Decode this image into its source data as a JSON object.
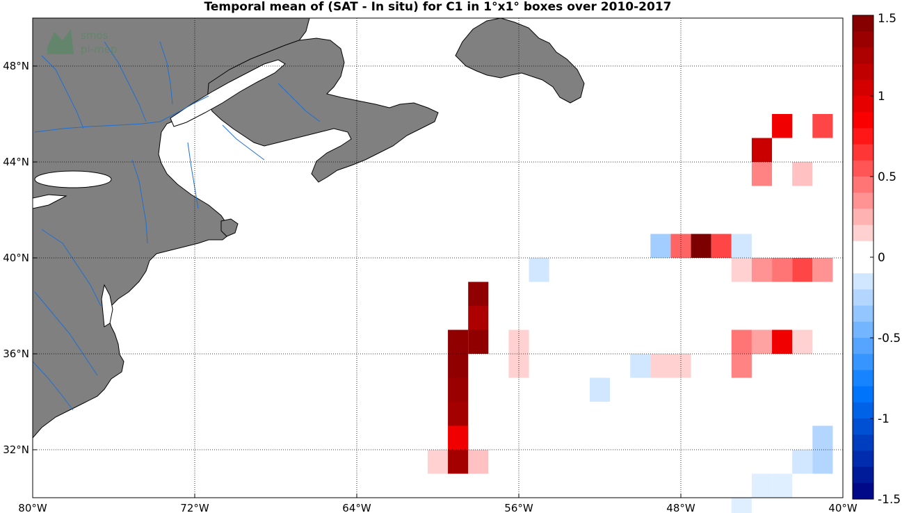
{
  "title": "Temporal mean of (SAT - In situ) for C1 in 1°x1° boxes over 2010-2017",
  "watermark": {
    "line1": "smos",
    "line2": "pi-mep"
  },
  "map": {
    "lon_range": [
      -80,
      -40
    ],
    "lat_range": [
      30,
      50
    ],
    "lon_ticks": [
      -80,
      -72,
      -64,
      -56,
      -48,
      -40
    ],
    "lat_ticks": [
      32,
      36,
      40,
      44,
      48
    ],
    "lon_tick_labels": [
      "80°W",
      "72°W",
      "64°W",
      "56°W",
      "48°W",
      "40°W"
    ],
    "lat_tick_labels": [
      "32°N",
      "36°N",
      "40°N",
      "44°N",
      "48°N"
    ],
    "land_color": "#808080",
    "river_color": "#1f6fd0",
    "grid": true
  },
  "colorbar": {
    "range": [
      -1.5,
      1.5
    ],
    "ticks": [
      1.5,
      1,
      0.5,
      0,
      -0.5,
      -1,
      -1.5
    ],
    "tick_labels": [
      "1.5",
      "1",
      "0.5",
      "0",
      "-0.5",
      "-1",
      "-1.5"
    ]
  },
  "chart_data": {
    "type": "heatmap",
    "title": "Temporal mean of (SAT - In situ) for C1 in 1°x1° boxes over 2010-2017",
    "cell_size_deg": 1,
    "cells": [
      {
        "lon": -43.0,
        "lat": 45.5,
        "value": 0.9
      },
      {
        "lon": -41.0,
        "lat": 45.5,
        "value": 0.6
      },
      {
        "lon": -44.0,
        "lat": 44.5,
        "value": 1.1
      },
      {
        "lon": -44.0,
        "lat": 43.5,
        "value": 0.4
      },
      {
        "lon": -42.0,
        "lat": 43.5,
        "value": 0.2
      },
      {
        "lon": -49.0,
        "lat": 40.5,
        "value": -0.3
      },
      {
        "lon": -48.0,
        "lat": 40.5,
        "value": 0.5
      },
      {
        "lon": -47.0,
        "lat": 40.5,
        "value": 1.5
      },
      {
        "lon": -46.0,
        "lat": 40.5,
        "value": 0.6
      },
      {
        "lon": -45.0,
        "lat": 40.5,
        "value": -0.15
      },
      {
        "lon": -55.0,
        "lat": 39.5,
        "value": -0.15
      },
      {
        "lon": -45.0,
        "lat": 39.5,
        "value": 0.15
      },
      {
        "lon": -44.0,
        "lat": 39.5,
        "value": 0.35
      },
      {
        "lon": -43.0,
        "lat": 39.5,
        "value": 0.45
      },
      {
        "lon": -42.0,
        "lat": 39.5,
        "value": 0.6
      },
      {
        "lon": -41.0,
        "lat": 39.5,
        "value": 0.35
      },
      {
        "lon": -58.0,
        "lat": 38.5,
        "value": 1.4
      },
      {
        "lon": -58.0,
        "lat": 37.5,
        "value": 1.25
      },
      {
        "lon": -59.0,
        "lat": 36.5,
        "value": 1.4
      },
      {
        "lon": -58.0,
        "lat": 36.5,
        "value": 1.4
      },
      {
        "lon": -56.0,
        "lat": 36.5,
        "value": 0.15
      },
      {
        "lon": -45.0,
        "lat": 36.5,
        "value": 0.45
      },
      {
        "lon": -44.0,
        "lat": 36.5,
        "value": 0.3
      },
      {
        "lon": -43.0,
        "lat": 36.5,
        "value": 0.9
      },
      {
        "lon": -42.0,
        "lat": 36.5,
        "value": 0.15
      },
      {
        "lon": -59.0,
        "lat": 35.5,
        "value": 1.4
      },
      {
        "lon": -56.0,
        "lat": 35.5,
        "value": 0.15
      },
      {
        "lon": -50.0,
        "lat": 35.5,
        "value": -0.15
      },
      {
        "lon": -49.0,
        "lat": 35.5,
        "value": 0.15
      },
      {
        "lon": -48.0,
        "lat": 35.5,
        "value": 0.15
      },
      {
        "lon": -45.0,
        "lat": 35.5,
        "value": 0.4
      },
      {
        "lon": -59.0,
        "lat": 34.5,
        "value": 1.35
      },
      {
        "lon": -52.0,
        "lat": 34.5,
        "value": -0.15
      },
      {
        "lon": -59.0,
        "lat": 33.5,
        "value": 1.3
      },
      {
        "lon": -59.0,
        "lat": 32.5,
        "value": 0.9
      },
      {
        "lon": -41.0,
        "lat": 32.5,
        "value": -0.25
      },
      {
        "lon": -60.0,
        "lat": 31.5,
        "value": 0.15
      },
      {
        "lon": -59.0,
        "lat": 31.5,
        "value": 1.3
      },
      {
        "lon": -58.0,
        "lat": 31.5,
        "value": 0.2
      },
      {
        "lon": -42.0,
        "lat": 31.5,
        "value": -0.15
      },
      {
        "lon": -41.0,
        "lat": 31.5,
        "value": -0.25
      },
      {
        "lon": -44.0,
        "lat": 30.5,
        "value": -0.1
      },
      {
        "lon": -43.0,
        "lat": 30.5,
        "value": -0.1
      },
      {
        "lon": -45.0,
        "lat": 29.5,
        "value": -0.1
      }
    ],
    "colorbar_range": [
      -1.5,
      1.5
    ]
  }
}
